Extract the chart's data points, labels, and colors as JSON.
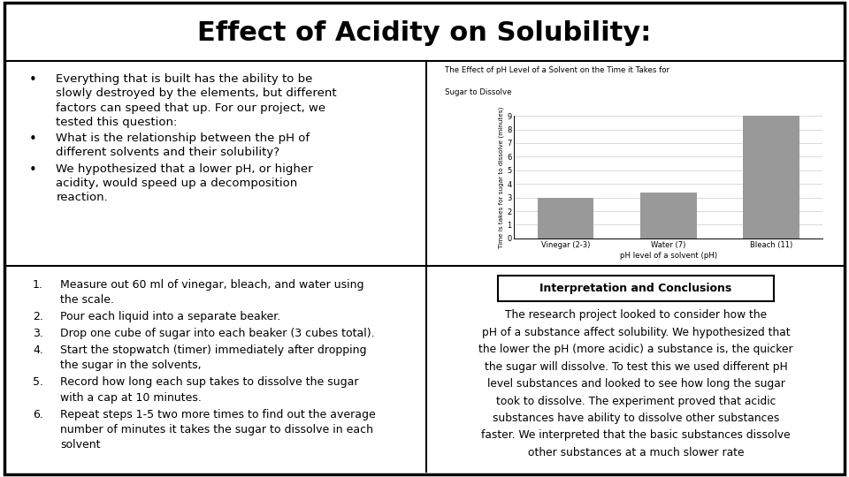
{
  "title": "Effect of Acidity on Solubility:",
  "title_fontsize": 22,
  "background_color": "#ffffff",
  "top_left_bullet_lines": [
    [
      "Everything that is built has the ability to be",
      "slowly destroyed by the elements, but different",
      "factors can speed that up. For our project, we",
      "tested this question:"
    ],
    [
      "What is the relationship between the pH of",
      "different solvents and their solubility?"
    ],
    [
      "We hypothesized that a lower pH, or higher",
      "acidity, would speed up a decomposition",
      "reaction."
    ]
  ],
  "chart_title_line1": "The Effect of pH Level of a Solvent on the Time it Takes for",
  "chart_title_line2": "Sugar to Dissolve",
  "chart_categories": [
    "Vinegar (2-3)",
    "Water (7)",
    "Bleach (11)"
  ],
  "chart_values": [
    3.0,
    3.35,
    9.0
  ],
  "chart_bar_color": "#999999",
  "chart_xlabel": "pH level of a solvent (pH)",
  "chart_ylabel": "Time is takes for sugar to dissolve (minutes)",
  "chart_ylim": [
    0,
    9
  ],
  "chart_yticks": [
    0,
    1,
    2,
    3,
    4,
    5,
    6,
    7,
    8,
    9
  ],
  "bottom_left_step_lines": [
    [
      "Measure out 60 ml of vinegar, bleach, and water using",
      "the scale."
    ],
    [
      "Pour each liquid into a separate beaker."
    ],
    [
      "Drop one cube of sugar into each beaker (3 cubes total)."
    ],
    [
      "Start the stopwatch (timer) immediately after dropping",
      "the sugar in the solvents,"
    ],
    [
      "Record how long each sup takes to dissolve the sugar",
      "with a cap at 10 minutes."
    ],
    [
      "Repeat steps 1-5 two more times to find out the average",
      "number of minutes it takes the sugar to dissolve in each",
      "solvent"
    ]
  ],
  "conclusion_title": "Interpretation and Conclusions",
  "conclusion_lines": [
    "The research project looked to consider how the",
    "pH of a substance affect solubility. We hypothesized that",
    "the lower the pH (more acidic) a substance is, the quicker",
    "the sugar will dissolve. To test this we used different pH",
    "level substances and looked to see how long the sugar",
    "took to dissolve. The experiment proved that acidic",
    "substances have ability to dissolve other substances",
    "faster. We interpreted that the basic substances dissolve",
    "other substances at a much slower rate"
  ]
}
